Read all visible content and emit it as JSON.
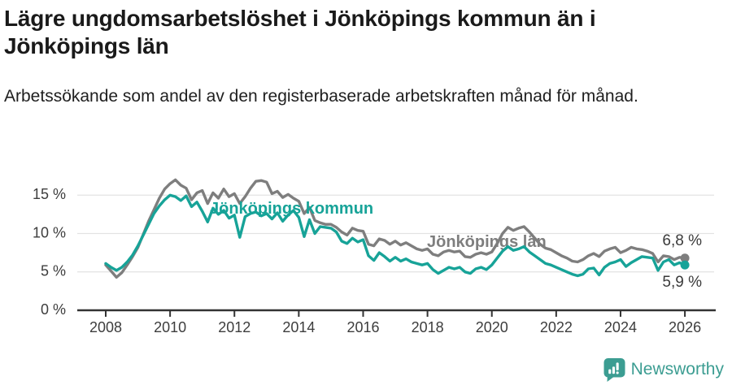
{
  "header": {
    "title": "Lägre ungdomsarbetslöshet i Jönköpings kommun än i Jönköpings län",
    "subtitle": "Arbetssökande som andel av den registerbaserade arbetskraften månad för månad."
  },
  "chart_data": {
    "type": "line",
    "unit": "%",
    "grid": "horizontal",
    "x_start": 2008.0,
    "x_step_months": 2,
    "x_end": 2026.0,
    "xticks": [
      2008,
      2010,
      2012,
      2014,
      2016,
      2018,
      2020,
      2022,
      2024,
      2026
    ],
    "yticks": [
      0,
      5,
      10,
      15
    ],
    "ytick_labels": [
      "0 %",
      "5 %",
      "10 %",
      "15 %"
    ],
    "ylim": [
      0,
      18.5
    ],
    "xlabel": "",
    "ylabel": "",
    "legend_position": "inline-labels",
    "series": [
      {
        "name": "Jönköpings län",
        "color": "#7e7e7e",
        "label_pos": {
          "x": 525,
          "y": 304
        },
        "end_label": "6,8 %",
        "end_value": 6.8,
        "end_label_pos": {
          "x": 863,
          "y": 302
        },
        "values": [
          5.9,
          5.1,
          4.3,
          4.9,
          5.9,
          7.0,
          8.2,
          9.9,
          11.6,
          13.1,
          14.6,
          15.8,
          16.5,
          17.0,
          16.3,
          15.9,
          14.4,
          15.3,
          15.6,
          13.9,
          15.3,
          14.6,
          15.8,
          14.8,
          15.2,
          13.9,
          14.8,
          15.9,
          16.8,
          16.9,
          16.7,
          15.2,
          15.5,
          14.7,
          15.1,
          14.6,
          14.2,
          12.6,
          13.4,
          11.7,
          11.4,
          11.2,
          11.2,
          10.8,
          10.2,
          9.8,
          10.7,
          10.4,
          10.3,
          8.6,
          8.4,
          9.3,
          9.1,
          8.6,
          9.0,
          8.5,
          8.8,
          8.4,
          8.0,
          7.8,
          8.0,
          7.3,
          7.1,
          7.6,
          7.8,
          7.6,
          7.7,
          7.0,
          6.9,
          7.3,
          7.5,
          7.3,
          7.6,
          8.7,
          10.0,
          10.8,
          10.4,
          10.7,
          10.9,
          10.2,
          9.4,
          8.6,
          8.1,
          7.9,
          7.5,
          7.1,
          6.8,
          6.4,
          6.3,
          6.6,
          7.1,
          7.4,
          7.0,
          7.7,
          8.0,
          8.2,
          7.5,
          7.8,
          8.2,
          8.0,
          7.9,
          7.7,
          7.4,
          6.3,
          7.1,
          7.0,
          6.6,
          6.9,
          6.8
        ]
      },
      {
        "name": "Jönköpings kommun",
        "color": "#17a398",
        "label_pos": {
          "x": 258,
          "y": 263
        },
        "end_label": "5,9 %",
        "end_value": 5.9,
        "end_label_pos": {
          "x": 863,
          "y": 353
        },
        "values": [
          6.1,
          5.6,
          5.2,
          5.6,
          6.3,
          7.2,
          8.4,
          9.8,
          11.2,
          12.6,
          13.6,
          14.4,
          15.0,
          14.8,
          14.3,
          14.9,
          13.5,
          14.1,
          12.9,
          11.5,
          13.3,
          12.5,
          13.0,
          12.0,
          12.4,
          9.5,
          12.2,
          12.6,
          12.8,
          12.3,
          12.6,
          11.9,
          12.7,
          11.6,
          12.4,
          13.0,
          12.1,
          9.6,
          11.8,
          10.0,
          10.9,
          10.8,
          10.7,
          10.2,
          9.0,
          8.7,
          9.4,
          8.9,
          9.2,
          7.1,
          6.5,
          7.5,
          7.0,
          6.4,
          6.9,
          6.4,
          6.7,
          6.3,
          6.1,
          5.9,
          6.1,
          5.3,
          4.8,
          5.2,
          5.6,
          5.4,
          5.6,
          5.0,
          4.8,
          5.4,
          5.6,
          5.3,
          5.9,
          6.8,
          7.7,
          8.3,
          7.8,
          8.0,
          8.3,
          7.6,
          7.1,
          6.6,
          6.1,
          5.9,
          5.6,
          5.3,
          5.0,
          4.7,
          4.5,
          4.7,
          5.4,
          5.5,
          4.6,
          5.6,
          6.1,
          6.3,
          6.6,
          5.7,
          6.2,
          6.6,
          7.0,
          6.9,
          6.8,
          5.2,
          6.3,
          6.6,
          5.9,
          6.2,
          5.9
        ]
      }
    ]
  },
  "colors": {
    "accent_teal": "#17a398",
    "series_gray": "#7e7e7e",
    "grid_line": "#e2e2e2",
    "axis": "#333333",
    "tick_text": "#3d3d3d",
    "title_text": "#1a1a1a",
    "brand_teal": "#3c9d92"
  },
  "footer": {
    "brand": "Newsworthy",
    "logo_icon": "speech-bubble-bar-chart-exclamation"
  }
}
